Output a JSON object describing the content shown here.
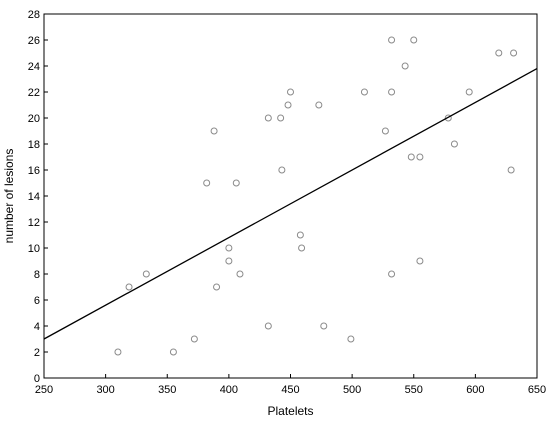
{
  "chart_data": {
    "type": "scatter",
    "title": "",
    "xlabel": "Platelets",
    "ylabel": "number of lesions",
    "xlim": [
      250,
      650
    ],
    "ylim": [
      0,
      28
    ],
    "xticks": [
      250,
      300,
      350,
      400,
      450,
      500,
      550,
      600,
      650
    ],
    "yticks": [
      0,
      2,
      4,
      6,
      8,
      10,
      12,
      14,
      16,
      18,
      20,
      22,
      24,
      26,
      28
    ],
    "grid": false,
    "legend": "none",
    "series": [
      {
        "points": [
          {
            "x": 310,
            "y": 2
          },
          {
            "x": 319,
            "y": 7
          },
          {
            "x": 333,
            "y": 8
          },
          {
            "x": 355,
            "y": 2
          },
          {
            "x": 372,
            "y": 3
          },
          {
            "x": 382,
            "y": 15
          },
          {
            "x": 388,
            "y": 19
          },
          {
            "x": 390,
            "y": 7
          },
          {
            "x": 400,
            "y": 10
          },
          {
            "x": 400,
            "y": 9
          },
          {
            "x": 406,
            "y": 15
          },
          {
            "x": 409,
            "y": 8
          },
          {
            "x": 432,
            "y": 20
          },
          {
            "x": 432,
            "y": 4
          },
          {
            "x": 442,
            "y": 20
          },
          {
            "x": 443,
            "y": 16
          },
          {
            "x": 448,
            "y": 21
          },
          {
            "x": 450,
            "y": 22
          },
          {
            "x": 458,
            "y": 11
          },
          {
            "x": 459,
            "y": 10
          },
          {
            "x": 473,
            "y": 21
          },
          {
            "x": 477,
            "y": 4
          },
          {
            "x": 499,
            "y": 3
          },
          {
            "x": 510,
            "y": 22
          },
          {
            "x": 527,
            "y": 19
          },
          {
            "x": 532,
            "y": 26
          },
          {
            "x": 532,
            "y": 22
          },
          {
            "x": 532,
            "y": 8
          },
          {
            "x": 543,
            "y": 24
          },
          {
            "x": 548,
            "y": 17
          },
          {
            "x": 550,
            "y": 26
          },
          {
            "x": 555,
            "y": 17
          },
          {
            "x": 555,
            "y": 9
          },
          {
            "x": 578,
            "y": 20
          },
          {
            "x": 583,
            "y": 18
          },
          {
            "x": 595,
            "y": 22
          },
          {
            "x": 619,
            "y": 25
          },
          {
            "x": 629,
            "y": 16
          },
          {
            "x": 631,
            "y": 25
          }
        ]
      }
    ],
    "trendline": {
      "x": [
        250,
        650
      ],
      "y": [
        3.0,
        23.8
      ]
    },
    "colors": {
      "point_stroke": "#8a8a8a",
      "line": "#000000",
      "axis": "#000000"
    }
  }
}
